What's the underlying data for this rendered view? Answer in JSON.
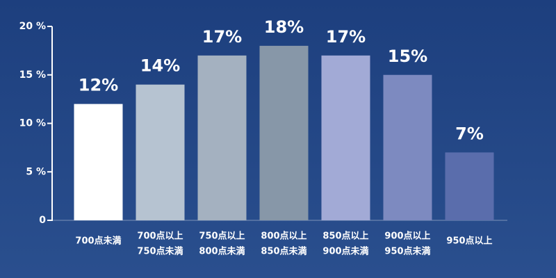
{
  "chart_data": {
    "type": "bar",
    "categories": [
      [
        "700点未満"
      ],
      [
        "700点以上",
        "750点未満"
      ],
      [
        "750点以上",
        "800点未満"
      ],
      [
        "800点以上",
        "850点未満"
      ],
      [
        "850点以上",
        "900点未満"
      ],
      [
        "900点以上",
        "950点未満"
      ],
      [
        "950点以上"
      ]
    ],
    "values": [
      12,
      14,
      17,
      18,
      17,
      15,
      7
    ],
    "value_labels": [
      "12%",
      "14%",
      "17%",
      "18%",
      "17%",
      "15%",
      "7%"
    ],
    "colors": [
      "#ffffff",
      "#b6c3d1",
      "#a4b1c0",
      "#8797a8",
      "#a2aad6",
      "#7d8ac0",
      "#5a6dac"
    ],
    "ylim": [
      0,
      20
    ],
    "yticks": [
      0,
      {
        "value": 5,
        "label": "5 %"
      },
      {
        "value": 10,
        "label": "10 %"
      },
      {
        "value": 15,
        "label": "15 %"
      },
      {
        "value": 20,
        "label": "20 %"
      }
    ]
  }
}
